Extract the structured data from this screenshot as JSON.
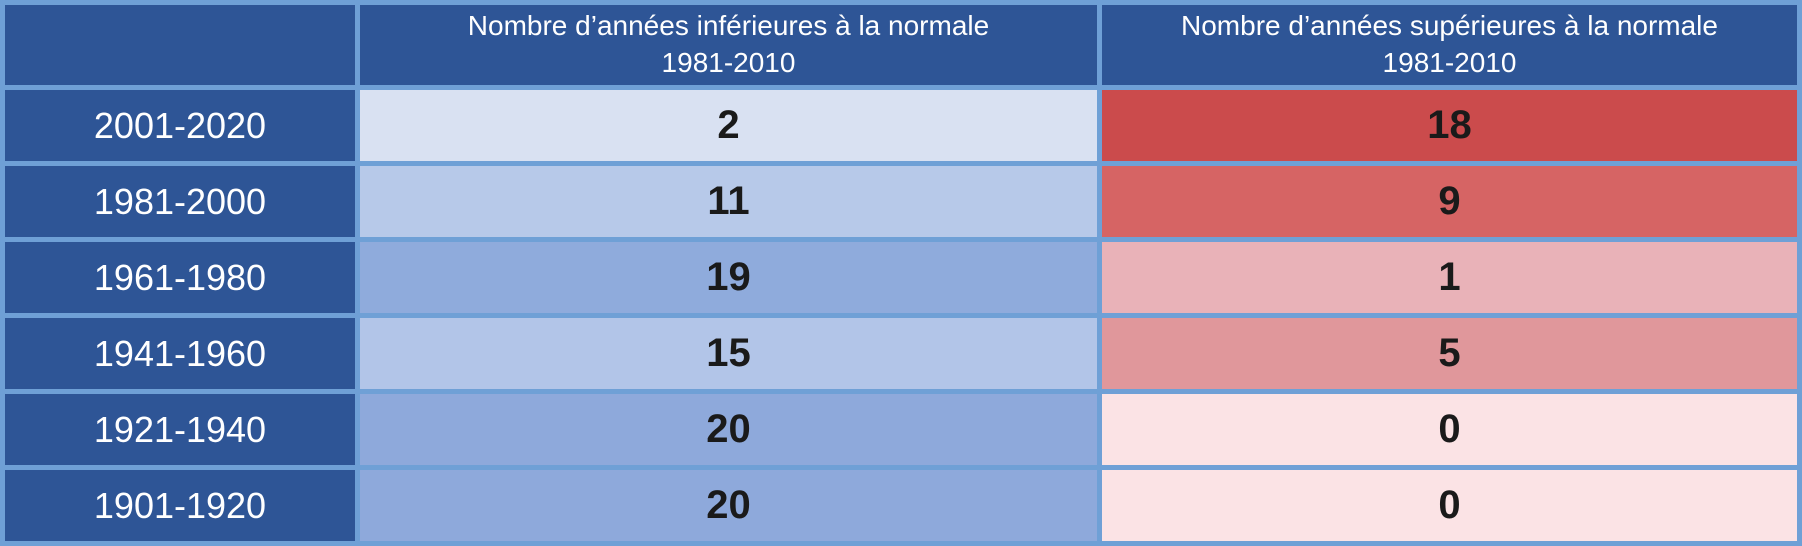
{
  "colors": {
    "grid_border": "#6FA0D6",
    "header_bg": "#2E5596",
    "header_text": "#FFFFFF",
    "value_text": "#1A1A1A",
    "below_scale_max": "#8EA9DB",
    "below_scale_min": "#D9E1F2",
    "above_scale_max": "#CB4B4C",
    "above_scale_min": "#FBE3E5"
  },
  "header": {
    "corner": "",
    "below": {
      "line1": "Nombre d’années inférieures à la normale",
      "line2": "1981-2010"
    },
    "above": {
      "line1": "Nombre d’années supérieures à la normale",
      "line2": "1981-2010"
    }
  },
  "rows": [
    {
      "period": "2001-2020",
      "below": "2",
      "below_bg": "#D9E1F2",
      "above": "18",
      "above_bg": "#CB4B4C"
    },
    {
      "period": "1981-2000",
      "below": "11",
      "below_bg": "#B7C9E9",
      "above": "9",
      "above_bg": "#D66464"
    },
    {
      "period": "1961-1980",
      "below": "19",
      "below_bg": "#8FABDC",
      "above": "1",
      "above_bg": "#E9B2B8"
    },
    {
      "period": "1941-1960",
      "below": "15",
      "below_bg": "#B2C5E8",
      "above": "5",
      "above_bg": "#E0979B"
    },
    {
      "period": "1921-1940",
      "below": "20",
      "below_bg": "#8EA9DB",
      "above": "0",
      "above_bg": "#FBE3E5"
    },
    {
      "period": "1901-1920",
      "below": "20",
      "below_bg": "#8EA9DB",
      "above": "0",
      "above_bg": "#FBE3E5"
    }
  ],
  "chart_data": {
    "type": "table",
    "title": "",
    "categories": [
      "2001-2020",
      "1981-2000",
      "1961-1980",
      "1941-1960",
      "1921-1940",
      "1901-1920"
    ],
    "series": [
      {
        "name": "Nombre d’années inférieures à la normale 1981-2010",
        "values": [
          2,
          11,
          19,
          15,
          20,
          20
        ]
      },
      {
        "name": "Nombre d’années supérieures à la normale 1981-2010",
        "values": [
          18,
          9,
          1,
          5,
          0,
          0
        ]
      }
    ],
    "value_range": [
      0,
      20
    ],
    "style_note": "heatmap table: blue scale (darker = more years below normal), red scale (darker = more years above normal)"
  }
}
